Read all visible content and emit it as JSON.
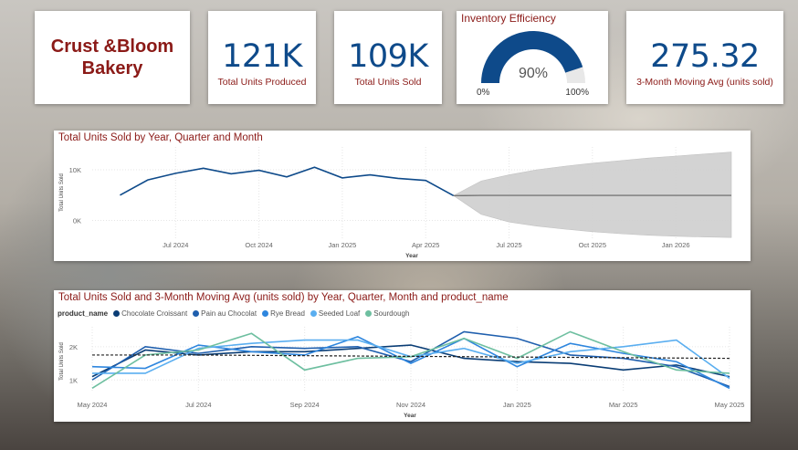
{
  "logo": {
    "text": "Crust &Bloom\nBakery"
  },
  "kpis": [
    {
      "value": "121K",
      "label": "Total Units Produced"
    },
    {
      "value": "109K",
      "label": "Total Units Sold"
    },
    {
      "value": "275.32",
      "label": "3-Month Moving Avg (units sold)"
    }
  ],
  "gauge": {
    "title": "Inventory Efficiency",
    "value_label": "90%",
    "min_label": "0%",
    "max_label": "100%",
    "value": 0.9,
    "color": "#0e4a8a"
  },
  "colors": {
    "title": "#8b1a17",
    "kpi_value": "#0e4a8a",
    "series_line": "#0e4a8a",
    "forecast_band": "#cfcfcf"
  },
  "chart_data": [
    {
      "type": "line",
      "title": "Total Units Sold by Year, Quarter and Month",
      "xlabel": "Year",
      "ylabel": "Total Units Sold",
      "x_ticks": [
        "Jul 2024",
        "Oct 2024",
        "Jan 2025",
        "Apr 2025",
        "Jul 2025",
        "Oct 2025",
        "Jan 2026"
      ],
      "y_ticks": [
        "10K",
        "0K"
      ],
      "ylim": [
        -3500,
        14500
      ],
      "grid": true,
      "x": [
        "2024-05",
        "2024-06",
        "2024-07",
        "2024-08",
        "2024-09",
        "2024-10",
        "2024-11",
        "2024-12",
        "2025-01",
        "2025-02",
        "2025-03",
        "2025-04",
        "2025-05"
      ],
      "series": [
        {
          "values": [
            5000,
            8000,
            9300,
            10300,
            9200,
            9900,
            8600,
            10500,
            8400,
            9000,
            8300,
            7900,
            4900
          ]
        }
      ],
      "forecast": {
        "x": [
          "2025-05",
          "2025-06",
          "2025-07",
          "2025-08",
          "2025-09",
          "2025-10",
          "2025-11",
          "2025-12",
          "2026-01",
          "2026-02",
          "2026-03"
        ],
        "value": [
          4900,
          4950,
          4950,
          4950,
          4950,
          4950,
          4950,
          4950,
          4950,
          4950,
          4950
        ],
        "upper": [
          4900,
          7800,
          9000,
          10000,
          10700,
          11300,
          11800,
          12300,
          12700,
          13100,
          13500
        ],
        "lower": [
          4900,
          1200,
          -300,
          -1100,
          -1700,
          -2200,
          -2600,
          -2900,
          -3100,
          -3250,
          -3350
        ]
      }
    },
    {
      "type": "line",
      "title": "Total Units Sold and 3-Month Moving Avg (units sold) by Year, Quarter, Month and product_name",
      "legend_title": "product_name",
      "xlabel": "Year",
      "ylabel": "Total Units Sold",
      "x_ticks": [
        "May 2024",
        "Jul 2024",
        "Sep 2024",
        "Nov 2024",
        "Jan 2025",
        "Mar 2025",
        "May 2025"
      ],
      "y_ticks": [
        "2K",
        "1K"
      ],
      "ylim": [
        650,
        2600
      ],
      "grid": true,
      "x": [
        "2024-05",
        "2024-06",
        "2024-07",
        "2024-08",
        "2024-09",
        "2024-10",
        "2024-11",
        "2024-12",
        "2025-01",
        "2025-02",
        "2025-03",
        "2025-04",
        "2025-05"
      ],
      "series": [
        {
          "name": "Chocolate Croissant",
          "color": "#0a3d75",
          "values": [
            1100,
            1900,
            1750,
            1850,
            1850,
            1950,
            2050,
            1650,
            1550,
            1500,
            1300,
            1450,
            1100
          ]
        },
        {
          "name": "Pain au Chocolat",
          "color": "#1f5fae",
          "values": [
            1000,
            2000,
            1800,
            2000,
            1950,
            2000,
            1550,
            2450,
            2250,
            1750,
            1650,
            1400,
            800
          ]
        },
        {
          "name": "Rye Bread",
          "color": "#2e86de",
          "values": [
            1400,
            1350,
            2050,
            1850,
            1750,
            2300,
            1500,
            2250,
            1400,
            2100,
            1800,
            1550,
            750
          ]
        },
        {
          "name": "Seeded Loaf",
          "color": "#5aaef0",
          "values": [
            1200,
            1200,
            1950,
            2100,
            2200,
            2200,
            1700,
            1950,
            1500,
            1850,
            2000,
            2200,
            1050
          ]
        },
        {
          "name": "Sourdough",
          "color": "#6ebfa0",
          "values": [
            750,
            1750,
            1900,
            2400,
            1300,
            1650,
            1700,
            2250,
            1650,
            2450,
            1850,
            1300,
            1200
          ]
        }
      ],
      "moving_avg": [
        1750,
        1750,
        1750,
        1740,
        1730,
        1720,
        1710,
        1700,
        1690,
        1680,
        1670,
        1660,
        1650
      ]
    }
  ]
}
